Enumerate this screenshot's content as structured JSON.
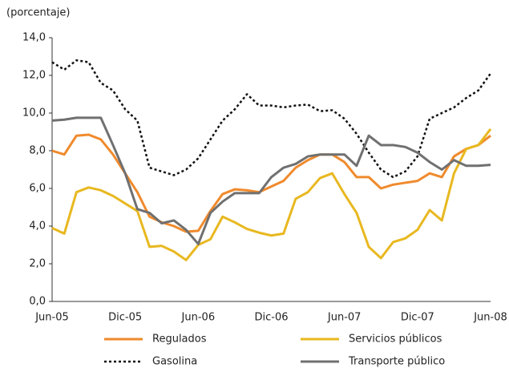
{
  "chart_data": {
    "type": "line",
    "y_label": "(porcentaje)",
    "categories": [
      "Jun-05",
      null,
      null,
      null,
      null,
      null,
      "Dic-05",
      null,
      null,
      null,
      null,
      null,
      "Jun-06",
      null,
      null,
      null,
      null,
      null,
      "Dic-06",
      null,
      null,
      null,
      null,
      null,
      "Jun-07",
      null,
      null,
      null,
      null,
      null,
      "Dic-07",
      null,
      null,
      null,
      null,
      null,
      "Jun-08"
    ],
    "ylim": [
      0,
      14
    ],
    "yticks": [
      {
        "value": 0,
        "label": "0,0"
      },
      {
        "value": 2,
        "label": "2,0"
      },
      {
        "value": 4,
        "label": "4,0"
      },
      {
        "value": 6,
        "label": "6,0"
      },
      {
        "value": 8,
        "label": "8,0"
      },
      {
        "value": 10,
        "label": "10,0"
      },
      {
        "value": 12,
        "label": "12,0"
      },
      {
        "value": 14,
        "label": "14,0"
      }
    ],
    "grid": false,
    "series": [
      {
        "name": "Regulados",
        "color": "#f08a2c",
        "dash": "solid",
        "values": [
          8.0,
          7.8,
          8.8,
          8.85,
          8.6,
          7.8,
          6.8,
          5.8,
          4.5,
          4.2,
          4.0,
          3.7,
          3.75,
          4.8,
          5.7,
          5.95,
          5.9,
          5.8,
          6.1,
          6.4,
          7.1,
          7.5,
          7.8,
          7.8,
          7.4,
          6.6,
          6.6,
          6.0,
          6.2,
          6.3,
          6.4,
          6.8,
          6.6,
          7.7,
          8.1,
          8.3,
          8.8
        ]
      },
      {
        "name": "Servicios públicos",
        "color": "#e8b820",
        "dash": "solid",
        "values": [
          3.9,
          3.6,
          5.8,
          6.05,
          5.9,
          5.6,
          5.2,
          4.8,
          2.9,
          2.95,
          2.65,
          2.2,
          3.0,
          3.3,
          4.5,
          4.2,
          3.85,
          3.65,
          3.5,
          3.6,
          5.45,
          5.8,
          6.55,
          6.8,
          5.7,
          4.7,
          2.9,
          2.3,
          3.15,
          3.35,
          3.8,
          4.85,
          4.3,
          6.8,
          8.1,
          8.3,
          9.15
        ]
      },
      {
        "name": "Gasolina",
        "color": "#111111",
        "dash": "dotted",
        "values": [
          12.7,
          12.3,
          12.8,
          12.7,
          11.6,
          11.2,
          10.2,
          9.6,
          7.1,
          6.9,
          6.7,
          7.0,
          7.6,
          8.6,
          9.6,
          10.2,
          11.0,
          10.4,
          10.4,
          10.3,
          10.4,
          10.45,
          10.1,
          10.15,
          9.7,
          8.9,
          7.9,
          7.0,
          6.6,
          6.9,
          7.7,
          9.7,
          10.0,
          10.3,
          10.8,
          11.2,
          12.1
        ]
      },
      {
        "name": "Transporte público",
        "color": "#707070",
        "dash": "solid",
        "values": [
          9.6,
          9.65,
          9.75,
          9.75,
          9.75,
          8.3,
          6.8,
          4.9,
          4.7,
          4.15,
          4.3,
          3.8,
          3.05,
          4.7,
          5.3,
          5.75,
          5.75,
          5.75,
          6.6,
          7.1,
          7.3,
          7.7,
          7.8,
          7.8,
          7.8,
          7.2,
          8.8,
          8.3,
          8.3,
          8.2,
          7.9,
          7.4,
          7.0,
          7.5,
          7.2,
          7.2,
          7.25
        ]
      }
    ]
  }
}
